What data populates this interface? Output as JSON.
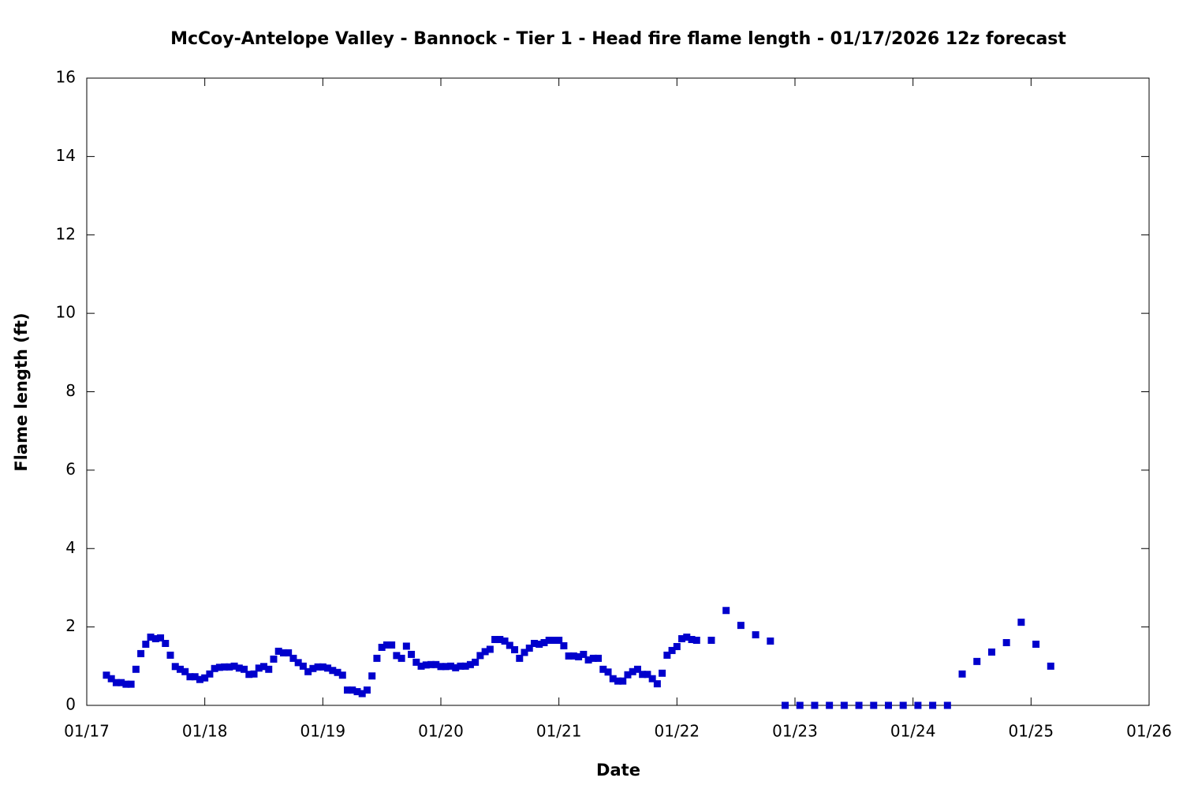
{
  "chart_data": {
    "type": "scatter",
    "title": "McCoy-Antelope Valley - Bannock - Tier 1 - Head fire flame length - 01/17/2026 12z forecast",
    "xlabel": "Date",
    "ylabel": "Flame length (ft)",
    "xlim": [
      0,
      9
    ],
    "ylim": [
      0,
      16
    ],
    "xticks": [
      {
        "value": 0,
        "label": "01/17"
      },
      {
        "value": 1,
        "label": "01/18"
      },
      {
        "value": 2,
        "label": "01/19"
      },
      {
        "value": 3,
        "label": "01/20"
      },
      {
        "value": 4,
        "label": "01/21"
      },
      {
        "value": 5,
        "label": "01/22"
      },
      {
        "value": 6,
        "label": "01/23"
      },
      {
        "value": 7,
        "label": "01/24"
      },
      {
        "value": 8,
        "label": "01/25"
      },
      {
        "value": 9,
        "label": "01/26"
      }
    ],
    "yticks": [
      0,
      2,
      4,
      6,
      8,
      10,
      12,
      14,
      16
    ],
    "grid": false,
    "series": [
      {
        "color": "#0000cc",
        "x": [
          0.1667,
          0.2083,
          0.25,
          0.2917,
          0.3333,
          0.375,
          0.4167,
          0.4583,
          0.5,
          0.5417,
          0.5833,
          0.625,
          0.6667,
          0.7083,
          0.75,
          0.7917,
          0.8333,
          0.875,
          0.9167,
          0.9583,
          1,
          1.0417,
          1.0833,
          1.125,
          1.1667,
          1.2083,
          1.25,
          1.2917,
          1.3333,
          1.375,
          1.4167,
          1.4583,
          1.5,
          1.5417,
          1.5833,
          1.625,
          1.6667,
          1.7083,
          1.75,
          1.7917,
          1.8333,
          1.875,
          1.9167,
          1.9583,
          2,
          2.0417,
          2.0833,
          2.125,
          2.1667,
          2.2083,
          2.25,
          2.2917,
          2.3333,
          2.375,
          2.4167,
          2.4583,
          2.5,
          2.5417,
          2.5833,
          2.625,
          2.6667,
          2.7083,
          2.75,
          2.7917,
          2.8333,
          2.875,
          2.9167,
          2.9583,
          3,
          3.0417,
          3.0833,
          3.125,
          3.1667,
          3.2083,
          3.25,
          3.2917,
          3.3333,
          3.375,
          3.4167,
          3.4583,
          3.5,
          3.5417,
          3.5833,
          3.625,
          3.6667,
          3.7083,
          3.75,
          3.7917,
          3.8333,
          3.875,
          3.9167,
          3.9583,
          4,
          4.0417,
          4.0833,
          4.125,
          4.1667,
          4.2083,
          4.25,
          4.2917,
          4.3333,
          4.375,
          4.4167,
          4.4583,
          4.5,
          4.5417,
          4.5833,
          4.625,
          4.6667,
          4.7083,
          4.75,
          4.7917,
          4.8333,
          4.875,
          4.9167,
          4.9583,
          5,
          5.0417,
          5.0833,
          5.125,
          5.1667,
          5.2917,
          5.4167,
          5.5417,
          5.6667,
          5.7917,
          5.9167,
          6.0417,
          6.1667,
          6.2917,
          6.4167,
          6.5417,
          6.6667,
          6.7917,
          6.9167,
          7.0417,
          7.1667,
          7.2917,
          7.4167,
          7.5417,
          7.6667,
          7.7917,
          7.9167,
          8.0417,
          8.1667
        ],
        "values": [
          0.77,
          0.68,
          0.58,
          0.58,
          0.54,
          0.54,
          0.92,
          1.32,
          1.56,
          1.74,
          1.7,
          1.72,
          1.58,
          1.28,
          0.99,
          0.92,
          0.86,
          0.73,
          0.73,
          0.66,
          0.7,
          0.8,
          0.94,
          0.97,
          0.98,
          0.98,
          1.0,
          0.95,
          0.92,
          0.79,
          0.8,
          0.95,
          0.99,
          0.92,
          1.18,
          1.38,
          1.34,
          1.34,
          1.2,
          1.09,
          1.0,
          0.86,
          0.94,
          0.98,
          0.98,
          0.95,
          0.89,
          0.84,
          0.77,
          0.39,
          0.39,
          0.35,
          0.3,
          0.39,
          0.75,
          1.2,
          1.48,
          1.54,
          1.54,
          1.27,
          1.2,
          1.51,
          1.3,
          1.1,
          1.0,
          1.03,
          1.04,
          1.04,
          0.99,
          0.99,
          1.0,
          0.96,
          1.0,
          1.0,
          1.04,
          1.1,
          1.27,
          1.37,
          1.43,
          1.68,
          1.68,
          1.64,
          1.53,
          1.42,
          1.2,
          1.35,
          1.46,
          1.58,
          1.56,
          1.6,
          1.66,
          1.66,
          1.66,
          1.52,
          1.26,
          1.26,
          1.24,
          1.3,
          1.16,
          1.2,
          1.2,
          0.92,
          0.85,
          0.68,
          0.62,
          0.62,
          0.78,
          0.86,
          0.92,
          0.79,
          0.79,
          0.68,
          0.55,
          0.82,
          1.28,
          1.4,
          1.5,
          1.7,
          1.74,
          1.68,
          1.66,
          1.66,
          2.42,
          2.04,
          1.8,
          1.64,
          0,
          0,
          0,
          0,
          0,
          0,
          0,
          0,
          0,
          0,
          0,
          0,
          0.8,
          1.12,
          1.36,
          1.6,
          2.12,
          1.56,
          1.0
        ]
      }
    ]
  }
}
